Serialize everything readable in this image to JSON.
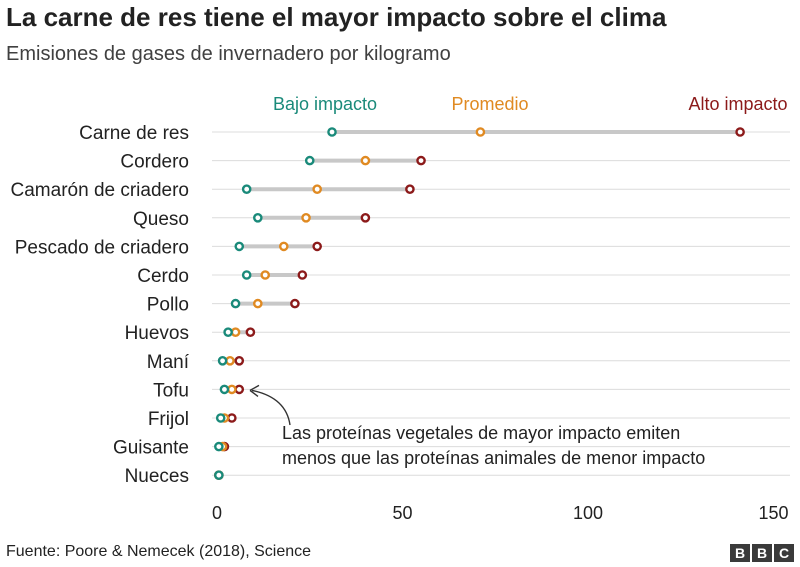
{
  "title": "La carne de res tiene el mayor impacto sobre el clima",
  "subtitle": "Emisiones de gases de invernadero por kilogramo",
  "source": "Fuente: Poore & Nemecek (2018), Science",
  "logo": {
    "letters": [
      "B",
      "B",
      "C"
    ]
  },
  "colors": {
    "low": "#1a8a7a",
    "avg": "#e08a22",
    "high": "#8c1a1a",
    "connector": "#c8c8c8",
    "grid": "#dcdcdc",
    "text": "#222222",
    "annotation": "#333333"
  },
  "chart_data": {
    "type": "scatter",
    "title": "La carne de res tiene el mayor impacto sobre el clima",
    "subtitle": "Emisiones de gases de invernadero por kilogramo",
    "xlabel": "",
    "ylabel": "",
    "xlim": [
      0,
      150
    ],
    "xticks": [
      0,
      50,
      100,
      150
    ],
    "grid": true,
    "legend_position": "top",
    "series": [
      {
        "name": "Bajo impacto",
        "key": "low"
      },
      {
        "name": "Promedio",
        "key": "avg"
      },
      {
        "name": "Alto impacto",
        "key": "high"
      }
    ],
    "categories": [
      "Carne de res",
      "Cordero",
      "Camarón de criadero",
      "Queso",
      "Pescado de criadero",
      "Cerdo",
      "Pollo",
      "Huevos",
      "Maní",
      "Tofu",
      "Frijol",
      "Guisante",
      "Nueces"
    ],
    "low": [
      31,
      25,
      8,
      11,
      6,
      8,
      5,
      3,
      1.5,
      2,
      1,
      0.5,
      0.5
    ],
    "avg": [
      71,
      40,
      27,
      24,
      18,
      13,
      11,
      5,
      3.5,
      4,
      2,
      1.5,
      0.5
    ],
    "high": [
      141,
      55,
      52,
      40,
      27,
      23,
      21,
      9,
      6,
      6,
      4,
      2,
      0.5
    ],
    "annotation": {
      "category": "Tofu",
      "lines": [
        "Las proteínas vegetales de mayor impacto emiten",
        "menos que las proteínas animales de menor impacto"
      ]
    }
  }
}
